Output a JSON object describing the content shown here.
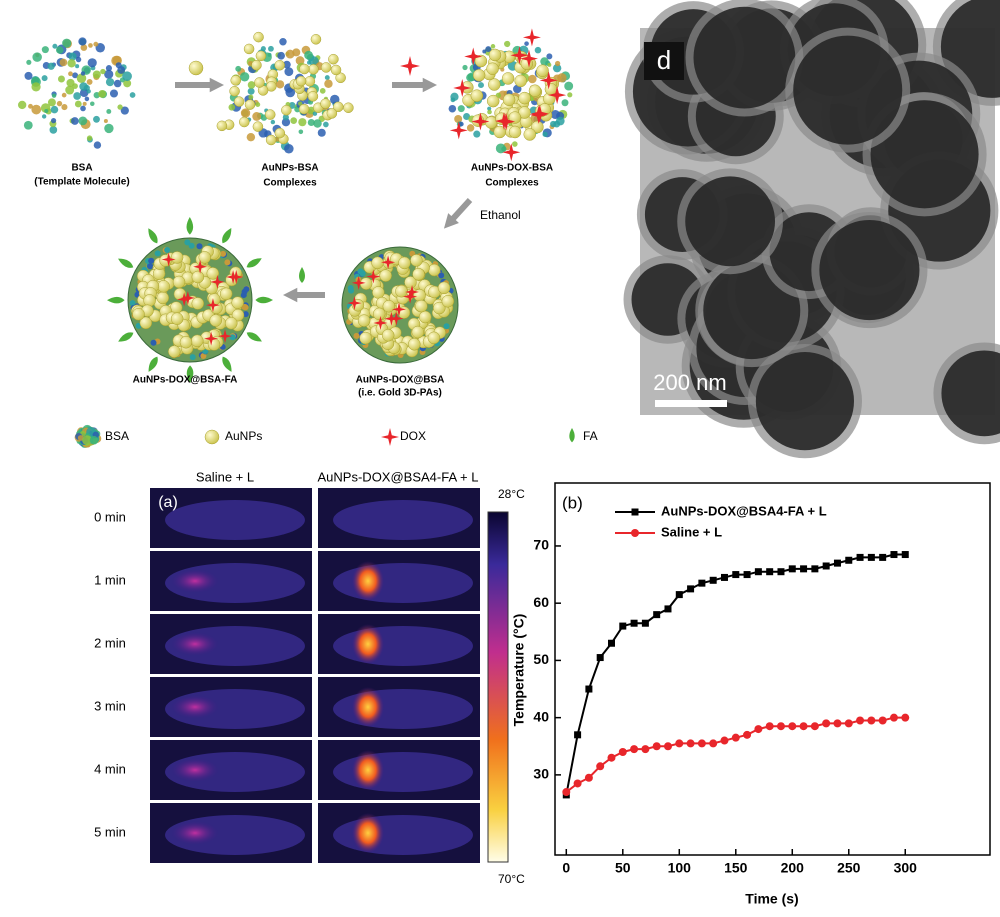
{
  "schematic": {
    "bsa": [
      "BSA",
      "(Template Molecule)"
    ],
    "aunps_bsa": [
      "AuNPs-BSA",
      "Complexes"
    ],
    "aunps_dox_bsa": [
      "AuNPs-DOX-BSA",
      "Complexes"
    ],
    "ethanol": "Ethanol",
    "fa_product": "AuNPs-DOX@BSA-FA",
    "product": [
      "AuNPs-DOX@BSA",
      "(i.e. Gold 3D-PAs)"
    ],
    "legend": [
      "BSA",
      "AuNPs",
      "DOX",
      "FA"
    ]
  },
  "tem": {
    "label": "d",
    "scale_bar": "200 nm"
  },
  "thermal": {
    "label": "(a)",
    "columns": [
      "Saline + L",
      "AuNPs-DOX@BSA4-FA + L"
    ],
    "rows": [
      "0 min",
      "1 min",
      "2 min",
      "3 min",
      "4 min",
      "5 min"
    ],
    "colorbar": [
      "28°C",
      "70°C"
    ]
  },
  "chart_data": {
    "type": "line",
    "label": "(b)",
    "x_label": "Time (s)",
    "y_label": "Temperature (°C)",
    "x": [
      0,
      10,
      20,
      30,
      40,
      50,
      60,
      70,
      80,
      90,
      100,
      110,
      120,
      130,
      140,
      150,
      160,
      170,
      180,
      190,
      200,
      210,
      220,
      230,
      240,
      250,
      260,
      270,
      280,
      290,
      300
    ],
    "series": [
      {
        "name": "AuNPs-DOX@BSA4-FA + L",
        "color": "#000000",
        "marker": "square",
        "values": [
          26.5,
          37,
          45,
          50.5,
          53,
          56,
          56.5,
          56.5,
          58,
          59,
          61.5,
          62.5,
          63.5,
          64,
          64.5,
          65,
          65,
          65.5,
          65.5,
          65.5,
          66,
          66,
          66,
          66.5,
          67,
          67.5,
          68,
          68,
          68,
          68.5,
          68.5
        ]
      },
      {
        "name": "Saline + L",
        "color": "#e8262b",
        "marker": "circle",
        "values": [
          27,
          28.5,
          29.5,
          31.5,
          33,
          34,
          34.5,
          34.5,
          35,
          35,
          35.5,
          35.5,
          35.5,
          35.5,
          36,
          36.5,
          37,
          38,
          38.5,
          38.5,
          38.5,
          38.5,
          38.5,
          39,
          39,
          39,
          39.5,
          39.5,
          39.5,
          40,
          40
        ]
      }
    ],
    "xlim": [
      -10,
      375
    ],
    "ylim": [
      16,
      81
    ],
    "xticks": [
      0,
      50,
      100,
      150,
      200,
      250,
      300
    ],
    "yticks": [
      30,
      40,
      50,
      60,
      70
    ],
    "legend": "upper left"
  }
}
